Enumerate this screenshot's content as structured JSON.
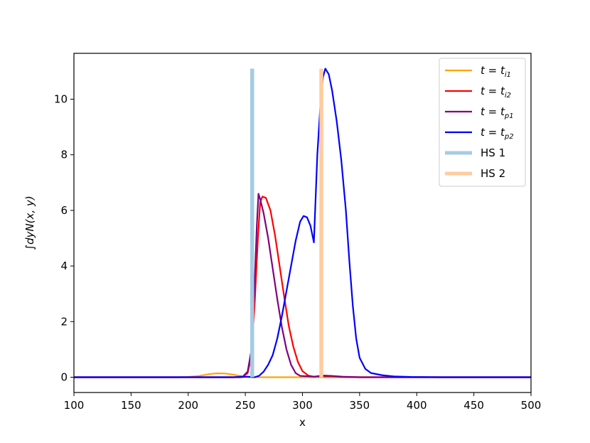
{
  "chart_data": {
    "type": "line",
    "xlabel": "x",
    "ylabel": "∫dyN(x, y)",
    "xlim": [
      100,
      500
    ],
    "ylim": [
      -0.55,
      11.65
    ],
    "xticks": [
      100,
      150,
      200,
      250,
      300,
      350,
      400,
      450,
      500
    ],
    "yticks": [
      0,
      2,
      4,
      6,
      8,
      10
    ],
    "legend_position": "top-right",
    "grid": false,
    "series": [
      {
        "name": "t = t_i1",
        "name_main": "t = t",
        "name_sub": "i1",
        "color": "#ffa500",
        "kind": "line",
        "points": [
          [
            100,
            0
          ],
          [
            190,
            0
          ],
          [
            200,
            0.01
          ],
          [
            210,
            0.05
          ],
          [
            218,
            0.11
          ],
          [
            225,
            0.14
          ],
          [
            232,
            0.135
          ],
          [
            240,
            0.09
          ],
          [
            246,
            0.04
          ],
          [
            250,
            0.012
          ],
          [
            253,
            0.0
          ],
          [
            256,
            0
          ],
          [
            300,
            0
          ],
          [
            500,
            0
          ]
        ]
      },
      {
        "name": "t = t_i2",
        "name_main": "t = t",
        "name_sub": "i2",
        "color": "#ff0000",
        "kind": "line",
        "points": [
          [
            100,
            0
          ],
          [
            240,
            0
          ],
          [
            248,
            0.02
          ],
          [
            252,
            0.15
          ],
          [
            255,
            0.7
          ],
          [
            258,
            2.5
          ],
          [
            261,
            5.0
          ],
          [
            263,
            6.3
          ],
          [
            265,
            6.5
          ],
          [
            268,
            6.45
          ],
          [
            272,
            6.0
          ],
          [
            276,
            5.1
          ],
          [
            280,
            4.0
          ],
          [
            284,
            2.9
          ],
          [
            288,
            1.85
          ],
          [
            292,
            1.1
          ],
          [
            296,
            0.55
          ],
          [
            300,
            0.22
          ],
          [
            305,
            0.06
          ],
          [
            310,
            0.02
          ],
          [
            318,
            0.03
          ],
          [
            325,
            0.03
          ],
          [
            335,
            0.01
          ],
          [
            350,
            0.0
          ],
          [
            500,
            0
          ]
        ]
      },
      {
        "name": "t = t_p1",
        "name_main": "t = t",
        "name_sub": "p1",
        "color": "#800080",
        "kind": "line",
        "points": [
          [
            100,
            0
          ],
          [
            240,
            0
          ],
          [
            248,
            0.03
          ],
          [
            252,
            0.2
          ],
          [
            255,
            0.9
          ],
          [
            258,
            3.2
          ],
          [
            260,
            5.4
          ],
          [
            261.5,
            6.6
          ],
          [
            263,
            6.4
          ],
          [
            266,
            5.9
          ],
          [
            270,
            5.0
          ],
          [
            274,
            3.9
          ],
          [
            278,
            2.8
          ],
          [
            282,
            1.8
          ],
          [
            286,
            1.0
          ],
          [
            290,
            0.45
          ],
          [
            294,
            0.15
          ],
          [
            298,
            0.05
          ],
          [
            310,
            0.02
          ],
          [
            318,
            0.06
          ],
          [
            325,
            0.05
          ],
          [
            335,
            0.02
          ],
          [
            350,
            0.0
          ],
          [
            500,
            0
          ]
        ]
      },
      {
        "name": "t = t_p2",
        "name_main": "t = t",
        "name_sub": "p2",
        "color": "#0000ff",
        "kind": "line",
        "points": [
          [
            100,
            0
          ],
          [
            245,
            0
          ],
          [
            252,
            0.02
          ],
          [
            258,
            0.0
          ],
          [
            262,
            0.05
          ],
          [
            266,
            0.2
          ],
          [
            270,
            0.45
          ],
          [
            274,
            0.8
          ],
          [
            278,
            1.4
          ],
          [
            282,
            2.2
          ],
          [
            286,
            3.1
          ],
          [
            290,
            4.0
          ],
          [
            294,
            4.9
          ],
          [
            298,
            5.6
          ],
          [
            301,
            5.8
          ],
          [
            304,
            5.75
          ],
          [
            307,
            5.45
          ],
          [
            309,
            5.05
          ],
          [
            310,
            4.85
          ],
          [
            311,
            5.9
          ],
          [
            313,
            8.0
          ],
          [
            316,
            10.0
          ],
          [
            318,
            10.8
          ],
          [
            320,
            11.1
          ],
          [
            323,
            10.9
          ],
          [
            326,
            10.3
          ],
          [
            330,
            9.2
          ],
          [
            334,
            7.8
          ],
          [
            338,
            6.0
          ],
          [
            341,
            4.2
          ],
          [
            344,
            2.6
          ],
          [
            347,
            1.4
          ],
          [
            350,
            0.7
          ],
          [
            355,
            0.3
          ],
          [
            360,
            0.15
          ],
          [
            370,
            0.07
          ],
          [
            380,
            0.03
          ],
          [
            395,
            0.01
          ],
          [
            420,
            0.0
          ],
          [
            500,
            0
          ]
        ]
      },
      {
        "name": "HS 1",
        "name_main": "HS 1",
        "name_sub": "",
        "color": "#a6cbe3",
        "kind": "vband",
        "x": 256,
        "y_range": [
          0,
          11.1
        ]
      },
      {
        "name": "HS 2",
        "name_main": "HS 2",
        "name_sub": "",
        "color": "#ffcc9f",
        "kind": "vband",
        "x": 316.5,
        "y_range": [
          0,
          11.1
        ]
      }
    ]
  }
}
